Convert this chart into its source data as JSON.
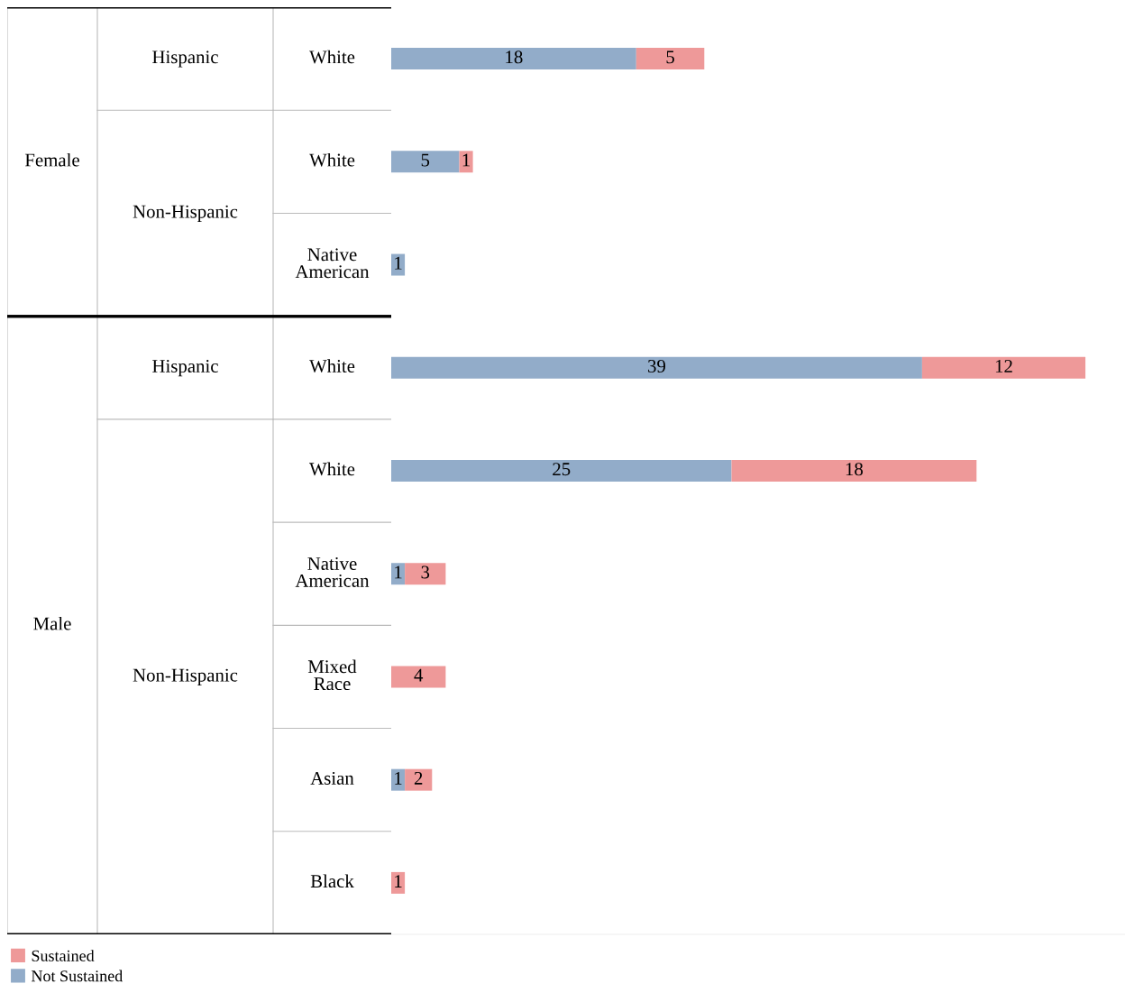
{
  "chart_data": {
    "type": "bar",
    "orientation": "horizontal",
    "stacked": true,
    "categories": [
      "White",
      "White",
      "Native American",
      "White",
      "White",
      "Native American",
      "Mixed Race",
      "Asian",
      "Black"
    ],
    "series": [
      {
        "name": "Not Sustained",
        "color": "#92acc9",
        "values": [
          18,
          5,
          1,
          39,
          25,
          1,
          null,
          1,
          null
        ]
      },
      {
        "name": "Sustained",
        "color": "#ee9999",
        "values": [
          5,
          1,
          null,
          12,
          18,
          3,
          4,
          2,
          1
        ]
      }
    ],
    "annotations": [
      "Female",
      "Hispanic",
      "Non-Hispanic",
      "Male",
      "Hispanic",
      "Non-Hispanic"
    ],
    "data_labels": true,
    "legend": "bottom left"
  }
}
